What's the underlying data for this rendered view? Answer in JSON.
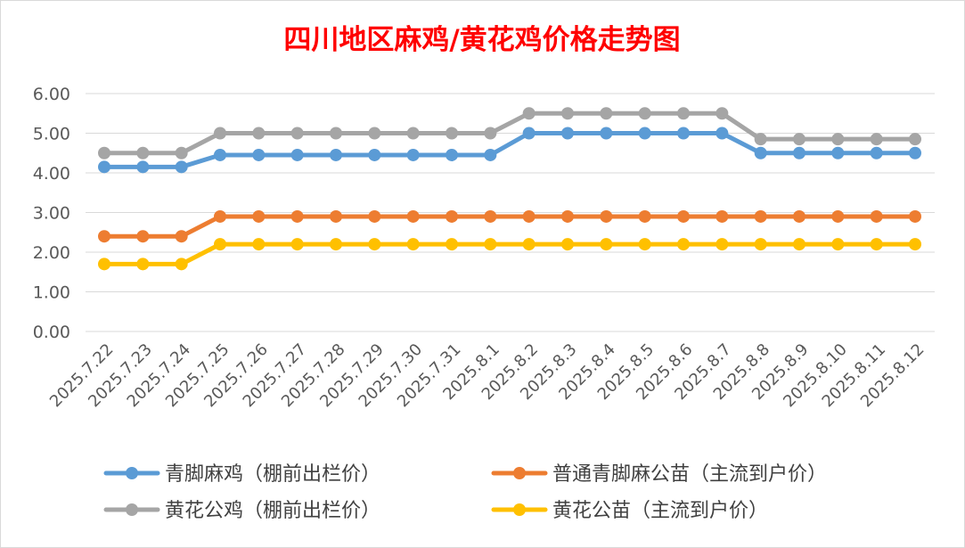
{
  "chart_data": {
    "type": "line",
    "title": "四川地区麻鸡/黄花鸡价格走势图",
    "xlabel": "",
    "ylabel": "",
    "ylim": [
      0,
      6
    ],
    "yticks": [
      "0.00",
      "1.00",
      "2.00",
      "3.00",
      "4.00",
      "5.00",
      "6.00"
    ],
    "grid": true,
    "legend_position": "bottom",
    "categories": [
      "2025.7.22",
      "2025.7.23",
      "2025.7.24",
      "2025.7.25",
      "2025.7.26",
      "2025.7.27",
      "2025.7.28",
      "2025.7.29",
      "2025.7.30",
      "2025.7.31",
      "2025.8.1",
      "2025.8.2",
      "2025.8.3",
      "2025.8.4",
      "2025.8.5",
      "2025.8.6",
      "2025.8.7",
      "2025.8.8",
      "2025.8.9",
      "2025.8.10",
      "2025.8.11",
      "2025.8.12"
    ],
    "series": [
      {
        "name": "青脚麻鸡（棚前出栏价）",
        "color": "#5b9bd5",
        "values": [
          4.15,
          4.15,
          4.15,
          4.45,
          4.45,
          4.45,
          4.45,
          4.45,
          4.45,
          4.45,
          4.45,
          5.0,
          5.0,
          5.0,
          5.0,
          5.0,
          5.0,
          4.5,
          4.5,
          4.5,
          4.5,
          4.5
        ]
      },
      {
        "name": "普通青脚麻公苗（主流到户价）",
        "color": "#ed7d31",
        "values": [
          2.4,
          2.4,
          2.4,
          2.9,
          2.9,
          2.9,
          2.9,
          2.9,
          2.9,
          2.9,
          2.9,
          2.9,
          2.9,
          2.9,
          2.9,
          2.9,
          2.9,
          2.9,
          2.9,
          2.9,
          2.9,
          2.9
        ]
      },
      {
        "name": "黄花公鸡（棚前出栏价）",
        "color": "#a5a5a5",
        "values": [
          4.5,
          4.5,
          4.5,
          5.0,
          5.0,
          5.0,
          5.0,
          5.0,
          5.0,
          5.0,
          5.0,
          5.5,
          5.5,
          5.5,
          5.5,
          5.5,
          5.5,
          4.85,
          4.85,
          4.85,
          4.85,
          4.85
        ]
      },
      {
        "name": "黄花公苗（主流到户价）",
        "color": "#ffc000",
        "values": [
          1.7,
          1.7,
          1.7,
          2.2,
          2.2,
          2.2,
          2.2,
          2.2,
          2.2,
          2.2,
          2.2,
          2.2,
          2.2,
          2.2,
          2.2,
          2.2,
          2.2,
          2.2,
          2.2,
          2.2,
          2.2,
          2.2
        ]
      }
    ]
  }
}
